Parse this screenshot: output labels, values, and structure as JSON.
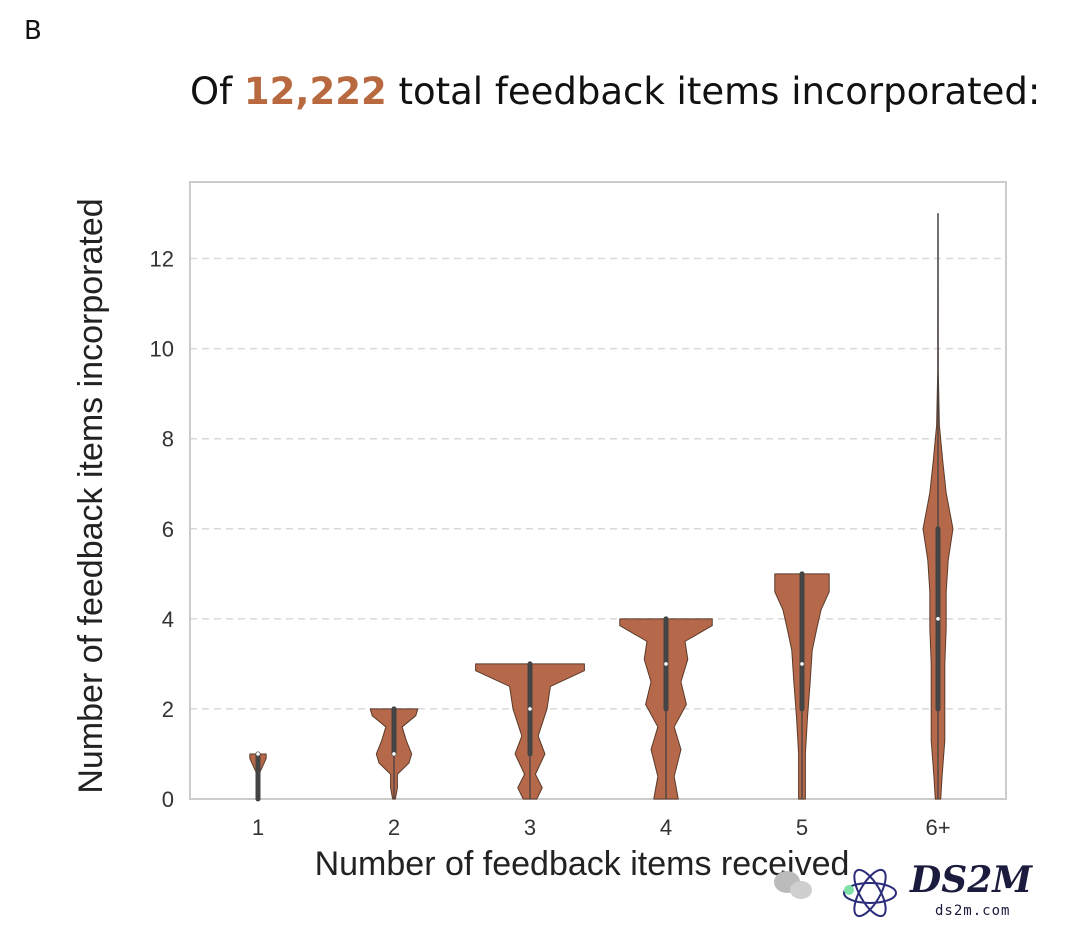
{
  "panel_label": "B",
  "title": {
    "prefix": "Of ",
    "highlight": "12,222",
    "suffix": " total feedback items incorporated:",
    "highlight_color": "#b8693f"
  },
  "colors": {
    "violin_fill": "#b5694a",
    "violin_stroke": "#5a3a2a",
    "box": "#444444",
    "grid": "#d9d9d9",
    "frame": "#cccccc"
  },
  "chart_data": {
    "type": "violin",
    "xlabel": "Number of feedback items received",
    "ylabel": "Number of feedback items incorporated",
    "categories": [
      "1",
      "2",
      "3",
      "4",
      "5",
      "6+"
    ],
    "yticks": [
      0,
      2,
      4,
      6,
      8,
      10,
      12
    ],
    "ylim": [
      0,
      13.7
    ],
    "grid": "y-dashed",
    "violins": [
      {
        "category": "1",
        "min": 0,
        "max": 1,
        "q1": 0,
        "median": 1,
        "q3": 1,
        "density": [
          [
            0,
            0.02
          ],
          [
            0.6,
            0.03
          ],
          [
            0.9,
            0.12
          ],
          [
            1,
            0.12
          ]
        ]
      },
      {
        "category": "2",
        "min": 0,
        "max": 2,
        "q1": 1,
        "median": 1,
        "q3": 2,
        "density": [
          [
            0,
            0.02
          ],
          [
            0.25,
            0.05
          ],
          [
            0.55,
            0.05
          ],
          [
            0.8,
            0.22
          ],
          [
            1,
            0.26
          ],
          [
            1.3,
            0.18
          ],
          [
            1.6,
            0.12
          ],
          [
            1.85,
            0.32
          ],
          [
            2,
            0.35
          ]
        ]
      },
      {
        "category": "3",
        "min": 0,
        "max": 3,
        "q1": 1,
        "median": 2,
        "q3": 3,
        "density": [
          [
            0,
            0.1
          ],
          [
            0.25,
            0.18
          ],
          [
            0.55,
            0.08
          ],
          [
            1,
            0.22
          ],
          [
            1.4,
            0.12
          ],
          [
            2,
            0.25
          ],
          [
            2.5,
            0.3
          ],
          [
            2.85,
            0.8
          ],
          [
            3,
            0.8
          ]
        ]
      },
      {
        "category": "4",
        "min": 0,
        "max": 4,
        "q1": 2,
        "median": 3,
        "q3": 4,
        "density": [
          [
            0,
            0.18
          ],
          [
            0.5,
            0.12
          ],
          [
            1.1,
            0.22
          ],
          [
            1.6,
            0.12
          ],
          [
            2.1,
            0.3
          ],
          [
            2.6,
            0.22
          ],
          [
            3.1,
            0.32
          ],
          [
            3.5,
            0.28
          ],
          [
            3.85,
            0.68
          ],
          [
            4,
            0.68
          ]
        ]
      },
      {
        "category": "5",
        "min": 0,
        "max": 5,
        "q1": 2,
        "median": 3,
        "q3": 5,
        "density": [
          [
            0,
            0.05
          ],
          [
            1,
            0.05
          ],
          [
            1.8,
            0.08
          ],
          [
            2.6,
            0.12
          ],
          [
            3.3,
            0.15
          ],
          [
            3.8,
            0.22
          ],
          [
            4.2,
            0.28
          ],
          [
            4.6,
            0.4
          ],
          [
            4.95,
            0.4
          ],
          [
            5,
            0.4
          ]
        ]
      },
      {
        "category": "6+",
        "min": 0,
        "max": 13,
        "q1": 2,
        "median": 4,
        "q3": 6,
        "density": [
          [
            0,
            0.04
          ],
          [
            0.5,
            0.06
          ],
          [
            1.3,
            0.1
          ],
          [
            2.2,
            0.1
          ],
          [
            3,
            0.1
          ],
          [
            3.8,
            0.12
          ],
          [
            4.6,
            0.12
          ],
          [
            5.3,
            0.15
          ],
          [
            6,
            0.22
          ],
          [
            6.8,
            0.12
          ],
          [
            7.5,
            0.07
          ],
          [
            8.3,
            0.02
          ],
          [
            9.5,
            0.004
          ],
          [
            13,
            0.002
          ]
        ]
      }
    ]
  },
  "watermark": {
    "brand": "DS2M",
    "site": "ds2m.com"
  }
}
